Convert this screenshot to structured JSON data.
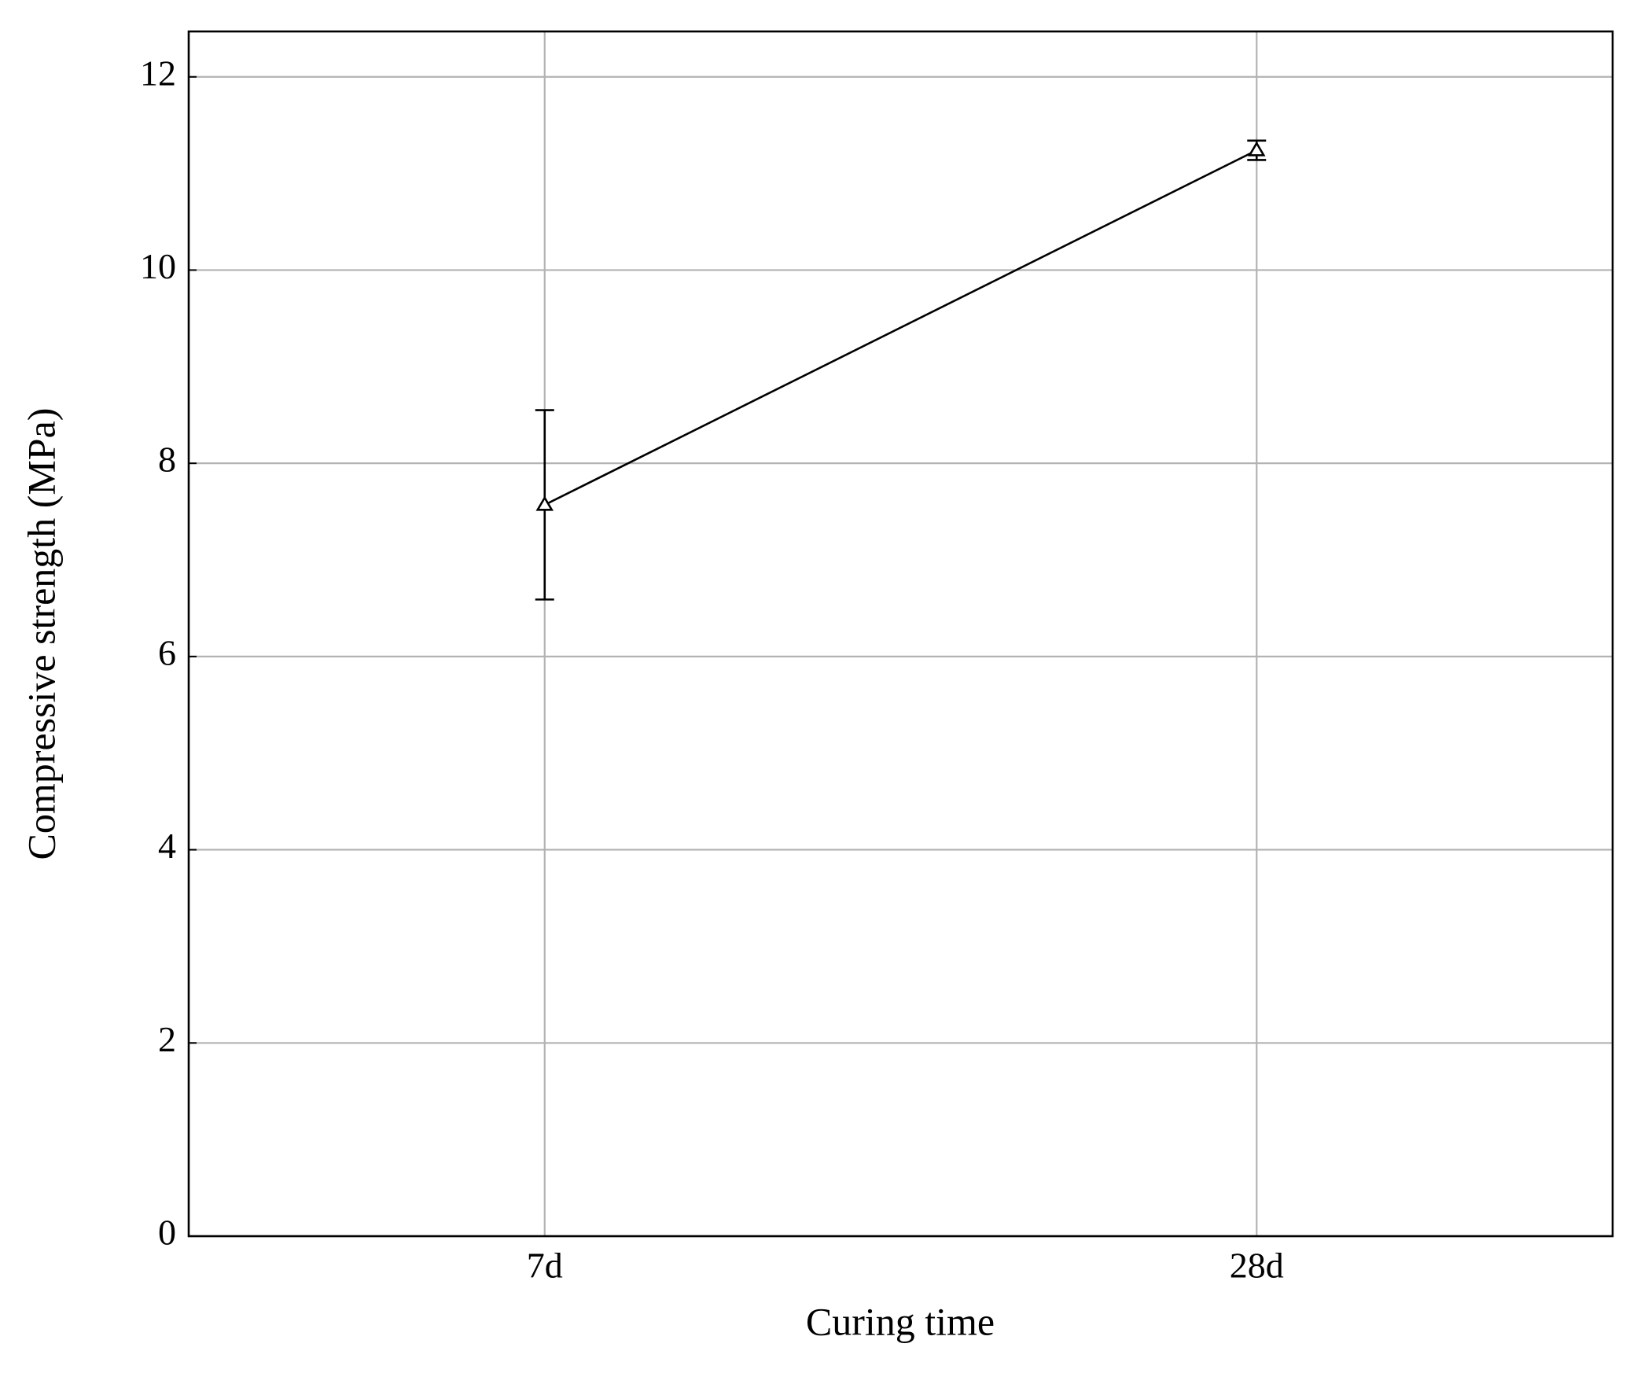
{
  "chart_data": {
    "type": "line",
    "x_label": "Curing time",
    "y_label": "Compressive strength (MPa)",
    "categories": [
      "7d",
      "28d"
    ],
    "values": [
      7.57,
      11.24
    ],
    "errors": [
      0.98,
      0.1
    ],
    "color": "#000000",
    "marker": "triangle",
    "ylim": [
      0,
      12.47
    ],
    "yticks": [
      0,
      2,
      4,
      6,
      8,
      10,
      12
    ],
    "grid": true
  }
}
